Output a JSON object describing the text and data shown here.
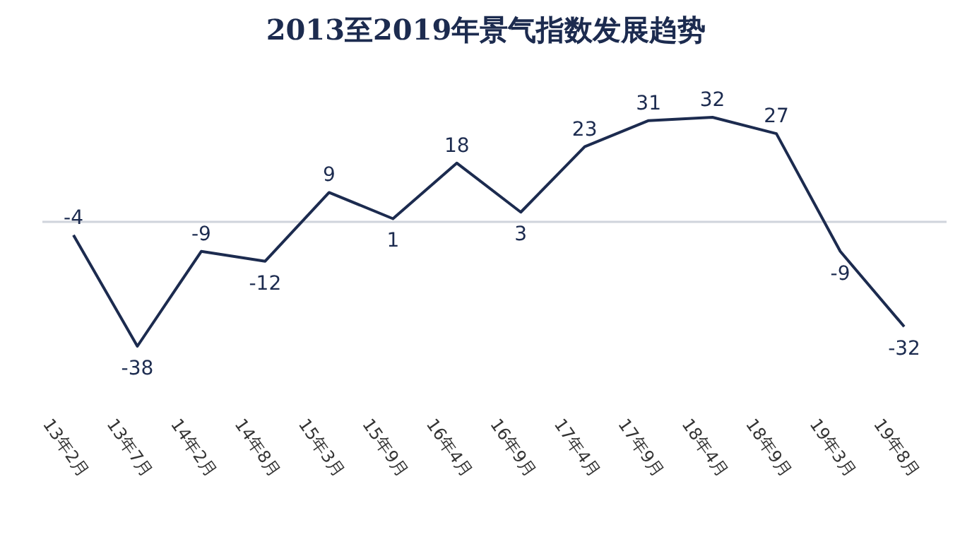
{
  "chart_data": {
    "type": "line",
    "title": "2013至2019年景气指数发展趋势",
    "categories": [
      "13年2月",
      "13年7月",
      "14年2月",
      "14年8月",
      "15年3月",
      "15年9月",
      "16年4月",
      "16年9月",
      "17年4月",
      "17年9月",
      "18年4月",
      "18年9月",
      "19年3月",
      "19年8月"
    ],
    "values": [
      -4,
      -38,
      -9,
      -12,
      9,
      1,
      18,
      3,
      23,
      31,
      32,
      27,
      -9,
      -32
    ],
    "color": "#1c2b4f",
    "data_labels": true,
    "marker": "none",
    "line_style": "solid",
    "ref_lines": [
      {
        "axis": "y",
        "value": 0,
        "color": "#d0d4dc"
      }
    ]
  }
}
